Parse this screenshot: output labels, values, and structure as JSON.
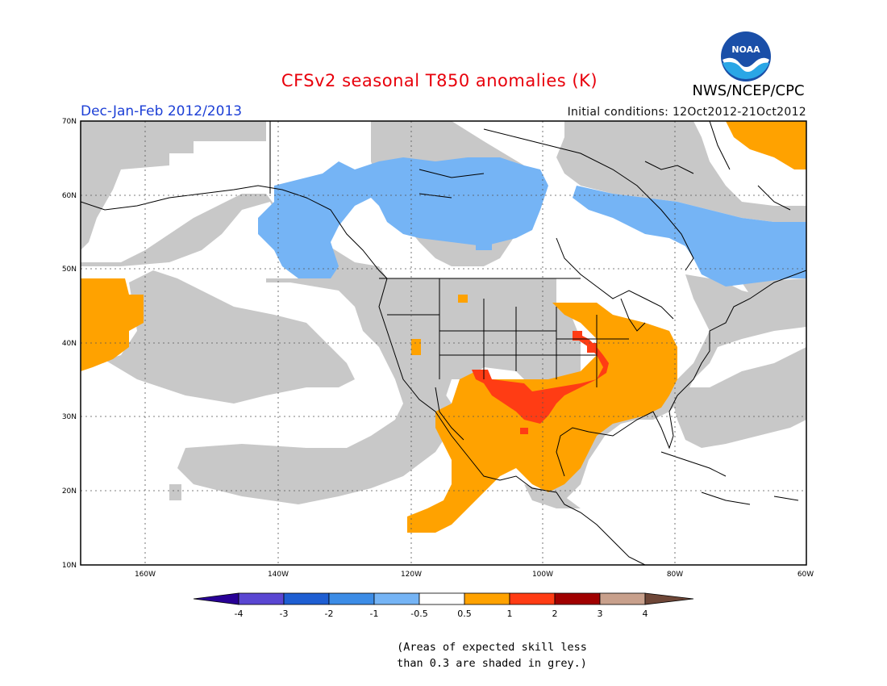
{
  "title": "CFSv2 seasonal T850 anomalies (K)",
  "organization": "NWS/NCEP/CPC",
  "logo_text": "NOAA",
  "season": "Dec-Jan-Feb 2012/2013",
  "initial_conditions": "Initial conditions: 12Oct2012-21Oct2012",
  "map": {
    "lon_range": [
      -175,
      -60
    ],
    "lat_range": [
      10,
      70
    ],
    "lat_ticks": [
      "10N",
      "20N",
      "30N",
      "40N",
      "50N",
      "60N",
      "70N"
    ],
    "lon_ticks": [
      "160W",
      "140W",
      "120W",
      "100W",
      "80W",
      "60W"
    ],
    "grid": "dotted",
    "colors": {
      "skill_grey": "#c8c8c8",
      "neg_0_5_to_1": "#75b4f5",
      "pos_0_5_to_1": "#ffa200",
      "pos_1_to_2": "#ff3c14"
    }
  },
  "colorbar": {
    "labels": [
      "-4",
      "-3",
      "-2",
      "-1",
      "-0.5",
      "0.5",
      "1",
      "2",
      "3",
      "4"
    ],
    "colors": [
      "#280096",
      "#5a46d2",
      "#1e5ed2",
      "#3c8ce6",
      "#75b4f5",
      "#ffffff",
      "#ffa200",
      "#ff3c14",
      "#a00000",
      "#c8a08c",
      "#6e4637"
    ]
  },
  "footnote": [
    "(Areas of expected skill less",
    "than 0.3 are shaded in grey.)"
  ]
}
